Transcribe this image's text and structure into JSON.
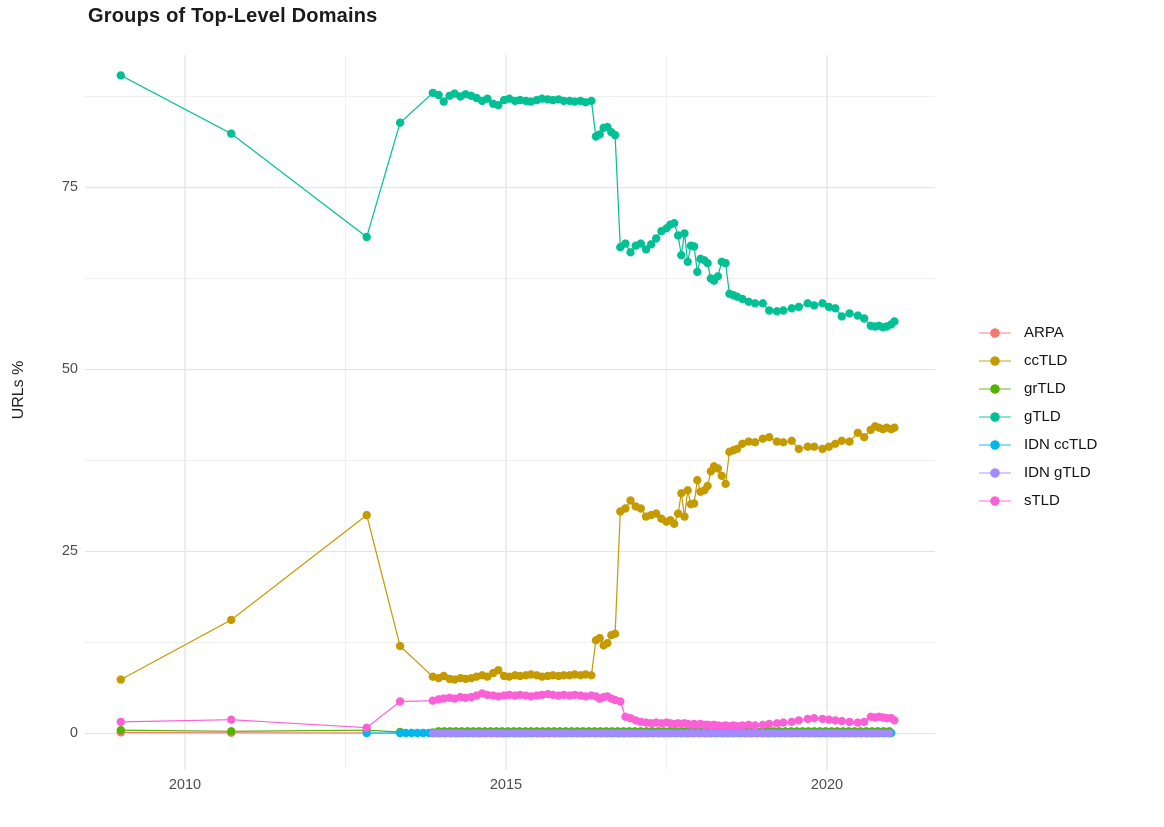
{
  "chart_data": {
    "type": "line",
    "title": "Groups of Top-Level Domains",
    "xlabel": "",
    "ylabel": "URLs %",
    "legend_position": "right",
    "grid": true,
    "x_axis": {
      "ticks": [
        2010,
        2015,
        2020
      ],
      "minor": [
        2012.5,
        2017.5
      ],
      "range": [
        2008.4,
        2021.7
      ]
    },
    "y_axis": {
      "ticks": [
        0,
        25,
        50,
        75
      ],
      "minor": [
        12.5,
        37.5,
        62.5,
        87.5
      ],
      "range": [
        -4.8,
        93.2
      ]
    },
    "x_shared": [
      2009.0,
      2010.72,
      2012.83,
      2013.35,
      2013.86,
      2013.95,
      2014.03,
      2014.12,
      2014.2,
      2014.29,
      2014.37,
      2014.46,
      2014.54,
      2014.63,
      2014.71,
      2014.8,
      2014.88,
      2014.97,
      2015.05,
      2015.14,
      2015.22,
      2015.31,
      2015.39,
      2015.48,
      2015.56,
      2015.65,
      2015.73,
      2015.82,
      2015.9,
      2015.99,
      2016.07,
      2016.16,
      2016.24,
      2016.33,
      2016.4,
      2016.46,
      2016.52,
      2016.58,
      2016.64,
      2016.7,
      2016.78,
      2016.86,
      2016.94,
      2017.02,
      2017.1,
      2017.18,
      2017.26,
      2017.34,
      2017.42,
      2017.5,
      2017.56,
      2017.62,
      2017.68,
      2017.73,
      2017.78,
      2017.83,
      2017.88,
      2017.93,
      2017.98,
      2018.03,
      2018.09,
      2018.14,
      2018.19,
      2018.24,
      2018.3,
      2018.36,
      2018.42,
      2018.48,
      2018.54,
      2018.6,
      2018.68,
      2018.78,
      2018.88,
      2019.0,
      2019.1,
      2019.22,
      2019.32,
      2019.45,
      2019.56,
      2019.7,
      2019.8,
      2019.93,
      2020.03,
      2020.13,
      2020.23,
      2020.35,
      2020.48,
      2020.58,
      2020.68,
      2020.75,
      2020.81,
      2020.87,
      2020.93,
      2021.0,
      2021.05
    ],
    "series": [
      {
        "name": "ARPA",
        "color": "#F8766D",
        "sparse": {
          "x": [
            2009.0,
            2010.72,
            2012.83,
            2013.35
          ],
          "y": [
            0.15,
            0.1,
            0.07,
            0.05
          ]
        },
        "flat": {
          "from": 2013.86,
          "to": 2021.05,
          "step": 0.09,
          "y": 0.05
        }
      },
      {
        "name": "ccTLD",
        "color": "#C49A00",
        "y": [
          7.4,
          15.6,
          30.0,
          12.0,
          7.8,
          7.6,
          7.9,
          7.5,
          7.4,
          7.6,
          7.5,
          7.6,
          7.8,
          8.0,
          7.8,
          8.3,
          8.7,
          7.9,
          7.8,
          8.0,
          7.9,
          8.0,
          8.1,
          8.0,
          7.8,
          7.9,
          8.0,
          7.9,
          8.0,
          8.0,
          8.1,
          8.0,
          8.1,
          8.0,
          12.8,
          13.1,
          12.1,
          12.4,
          13.5,
          13.7,
          30.5,
          30.9,
          32.0,
          31.2,
          30.9,
          29.8,
          30.0,
          30.2,
          29.5,
          29.1,
          29.3,
          28.8,
          30.2,
          33.0,
          29.8,
          33.4,
          31.5,
          31.6,
          34.8,
          33.2,
          33.4,
          34.0,
          36.0,
          36.7,
          36.4,
          35.4,
          34.3,
          38.7,
          38.9,
          39.1,
          39.8,
          40.1,
          40.0,
          40.5,
          40.7,
          40.1,
          40.0,
          40.2,
          39.1,
          39.4,
          39.4,
          39.1,
          39.4,
          39.8,
          40.2,
          40.1,
          41.3,
          40.7,
          41.7,
          42.2,
          42.0,
          41.8,
          42.0,
          41.8,
          42.0
        ]
      },
      {
        "name": "grTLD",
        "color": "#53B400",
        "sparse": {
          "x": [
            2009.0,
            2010.72,
            2012.83,
            2013.35,
            2013.86
          ],
          "y": [
            0.45,
            0.3,
            0.45,
            0.2,
            0.15
          ]
        },
        "flat": {
          "from": 2013.95,
          "to": 2021.05,
          "step": 0.09,
          "y": 0.3
        }
      },
      {
        "name": "gTLD",
        "color": "#00C094",
        "y": [
          90.4,
          82.4,
          68.2,
          83.9,
          88.0,
          87.7,
          86.8,
          87.6,
          87.9,
          87.5,
          87.8,
          87.6,
          87.3,
          86.9,
          87.2,
          86.5,
          86.3,
          87.0,
          87.2,
          86.9,
          87.0,
          86.9,
          86.8,
          87.0,
          87.2,
          87.1,
          87.0,
          87.1,
          86.9,
          86.9,
          86.8,
          86.9,
          86.7,
          86.9,
          82.0,
          82.3,
          83.2,
          83.3,
          82.6,
          82.2,
          66.8,
          67.3,
          66.1,
          67.0,
          67.3,
          66.5,
          67.2,
          68.0,
          69.0,
          69.4,
          69.9,
          70.1,
          68.4,
          65.7,
          68.7,
          64.8,
          67.0,
          66.9,
          63.4,
          65.2,
          65.0,
          64.6,
          62.5,
          62.2,
          62.8,
          64.8,
          64.6,
          60.4,
          60.2,
          60.0,
          59.7,
          59.3,
          59.1,
          59.1,
          58.1,
          58.0,
          58.1,
          58.4,
          58.6,
          59.1,
          58.8,
          59.1,
          58.6,
          58.4,
          57.3,
          57.7,
          57.4,
          57.0,
          56.0,
          55.9,
          56.0,
          55.8,
          55.9,
          56.2,
          56.6
        ]
      },
      {
        "name": "IDN ccTLD",
        "color": "#00B6EB",
        "sparse": {
          "x": [
            2012.83
          ],
          "y": [
            0.07
          ]
        },
        "flat": {
          "from": 2013.35,
          "to": 2021.05,
          "step": 0.09,
          "y": 0.07
        }
      },
      {
        "name": "IDN gTLD",
        "color": "#A58AFF",
        "sparse": {
          "x": [],
          "y": []
        },
        "flat": {
          "from": 2013.86,
          "to": 2021.05,
          "step": 0.09,
          "y": 0.03
        }
      },
      {
        "name": "sTLD",
        "color": "#FB61D7",
        "y": [
          1.6,
          1.9,
          0.8,
          4.4,
          4.5,
          4.7,
          4.8,
          4.9,
          4.8,
          5.0,
          4.9,
          5.0,
          5.2,
          5.5,
          5.3,
          5.2,
          5.1,
          5.2,
          5.3,
          5.2,
          5.3,
          5.2,
          5.1,
          5.2,
          5.3,
          5.4,
          5.3,
          5.2,
          5.3,
          5.2,
          5.3,
          5.2,
          5.1,
          5.2,
          5.1,
          4.8,
          5.0,
          5.1,
          4.8,
          4.6,
          4.4,
          2.3,
          2.1,
          1.8,
          1.6,
          1.5,
          1.4,
          1.5,
          1.4,
          1.5,
          1.4,
          1.3,
          1.4,
          1.3,
          1.4,
          1.3,
          1.2,
          1.3,
          1.2,
          1.3,
          1.2,
          1.2,
          1.1,
          1.2,
          1.1,
          1.0,
          1.1,
          1.0,
          1.1,
          1.0,
          1.1,
          1.2,
          1.1,
          1.2,
          1.3,
          1.4,
          1.5,
          1.6,
          1.8,
          2.0,
          2.1,
          2.0,
          1.9,
          1.8,
          1.7,
          1.6,
          1.5,
          1.6,
          2.3,
          2.2,
          2.3,
          2.2,
          2.1,
          2.1,
          1.8
        ]
      }
    ],
    "style": {
      "grid_major_color": "#e5e5e5",
      "grid_minor_color": "#f0f0f0",
      "tick_label_color": "#4d4d4d",
      "title_color": "#1b1b1b",
      "background": "#ffffff"
    }
  }
}
